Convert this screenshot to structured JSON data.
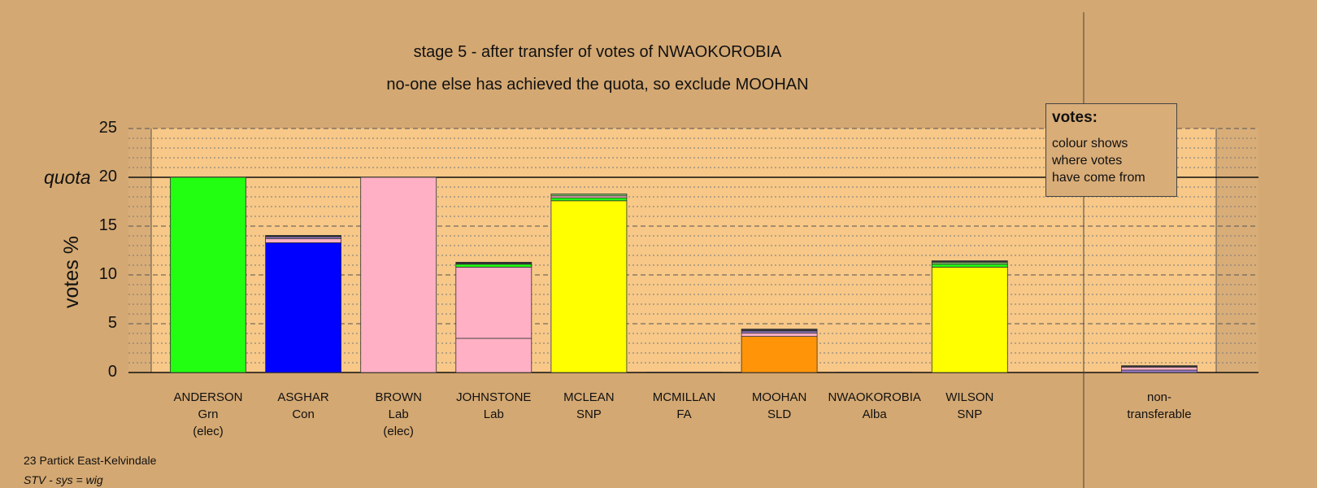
{
  "chart_data": {
    "type": "bar",
    "stacked": true,
    "title": "stage 5 - after transfer of votes of NWAOKOROBIA",
    "subtitle": "no-one else has achieved the quota, so exclude MOOHAN",
    "ylabel": "votes %",
    "ylim": [
      0,
      25
    ],
    "yticks": [
      0,
      5,
      10,
      15,
      20,
      25
    ],
    "quota": 20,
    "quota_label": "quota",
    "grid": "dashed major lines at 5, dotted minor lines at 1",
    "candidates": [
      {
        "name": "ANDERSON",
        "party": "Grn",
        "status": "(elec)",
        "segments": [
          {
            "value": 20.0,
            "color": "#22ff11"
          }
        ]
      },
      {
        "name": "ASGHAR",
        "party": "Con",
        "status": "",
        "segments": [
          {
            "value": 13.3,
            "color": "#0000ff"
          },
          {
            "value": 0.4,
            "color": "#ffb0c4"
          },
          {
            "value": 0.2,
            "color": "#9a7ad0"
          },
          {
            "value": 0.15,
            "color": "#333333"
          }
        ]
      },
      {
        "name": "BROWN",
        "party": "Lab",
        "status": "(elec)",
        "segments": [
          {
            "value": 20.0,
            "color": "#ffb0c4"
          }
        ]
      },
      {
        "name": "JOHNSTONE",
        "party": "Lab",
        "status": "",
        "segments": [
          {
            "value": 3.5,
            "color": "#ffb0c4"
          },
          {
            "value": 7.3,
            "color": "#ffb0c4"
          },
          {
            "value": 0.3,
            "color": "#22ff11"
          },
          {
            "value": 0.2,
            "color": "#333333"
          }
        ]
      },
      {
        "name": "MCLEAN",
        "party": "SNP",
        "status": "",
        "segments": [
          {
            "value": 17.6,
            "color": "#ffff00"
          },
          {
            "value": 0.3,
            "color": "#22ff11"
          },
          {
            "value": 0.2,
            "color": "#ffb0c4"
          },
          {
            "value": 0.2,
            "color": "#7fbf5f"
          }
        ]
      },
      {
        "name": "MCMILLAN",
        "party": "FA",
        "status": "",
        "segments": []
      },
      {
        "name": "MOOHAN",
        "party": "SLD",
        "status": "",
        "segments": [
          {
            "value": 3.7,
            "color": "#ff9408"
          },
          {
            "value": 0.35,
            "color": "#ffb0c4"
          },
          {
            "value": 0.2,
            "color": "#9a7ad0"
          },
          {
            "value": 0.2,
            "color": "#333333"
          }
        ]
      },
      {
        "name": "NWAOKOROBIA",
        "party": "Alba",
        "status": "",
        "segments": []
      },
      {
        "name": "WILSON",
        "party": "SNP",
        "status": "",
        "segments": [
          {
            "value": 10.8,
            "color": "#ffff00"
          },
          {
            "value": 0.3,
            "color": "#22ff11"
          },
          {
            "value": 0.2,
            "color": "#7fbf5f"
          },
          {
            "value": 0.15,
            "color": "#333333"
          }
        ]
      }
    ],
    "non_transferable": {
      "label_line1": "non-",
      "label_line2": "transferable",
      "segments": [
        {
          "value": 0.25,
          "color": "#9a7ad0"
        },
        {
          "value": 0.3,
          "color": "#ffb0c4"
        },
        {
          "value": 0.15,
          "color": "#333333"
        }
      ]
    }
  },
  "legend": {
    "title": "votes:",
    "lines": [
      "colour shows",
      "where votes",
      "have come from"
    ]
  },
  "footer": {
    "constituency": "23 Partick East-Kelvindale",
    "system": "STV - sys = wig"
  },
  "colors": {
    "background": "#d4a872",
    "plot_area": "#f7c888",
    "plot_margin": "#d9ad78"
  }
}
